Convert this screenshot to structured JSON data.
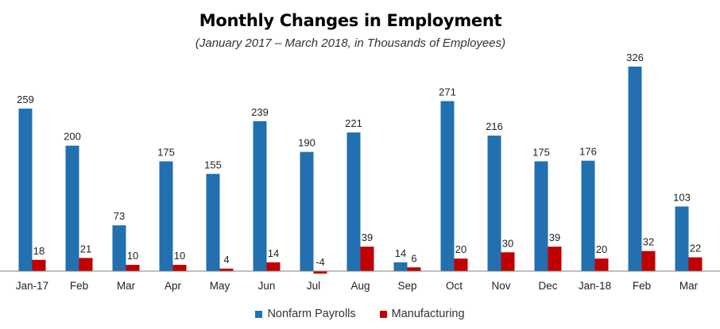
{
  "chart_data": {
    "type": "bar",
    "title": "Monthly Changes in Employment",
    "subtitle": "(January 2017 – March 2018, in Thousands of Employees)",
    "categories": [
      "Jan-17",
      "Feb",
      "Mar",
      "Apr",
      "May",
      "Jun",
      "Jul",
      "Aug",
      "Sep",
      "Oct",
      "Nov",
      "Dec",
      "Jan-18",
      "Feb",
      "Mar"
    ],
    "series": [
      {
        "name": "Nonfarm Payrolls",
        "color": "#2270AF",
        "values": [
          259,
          200,
          73,
          175,
          155,
          239,
          190,
          221,
          14,
          271,
          216,
          175,
          176,
          326,
          103
        ]
      },
      {
        "name": "Manufacturing",
        "color": "#C00000",
        "values": [
          18,
          21,
          10,
          10,
          4,
          14,
          -4,
          39,
          6,
          20,
          30,
          39,
          20,
          32,
          22
        ]
      }
    ],
    "xlabel": "",
    "ylabel": "",
    "ylim": [
      -10,
      340
    ],
    "legend_position": "bottom"
  }
}
